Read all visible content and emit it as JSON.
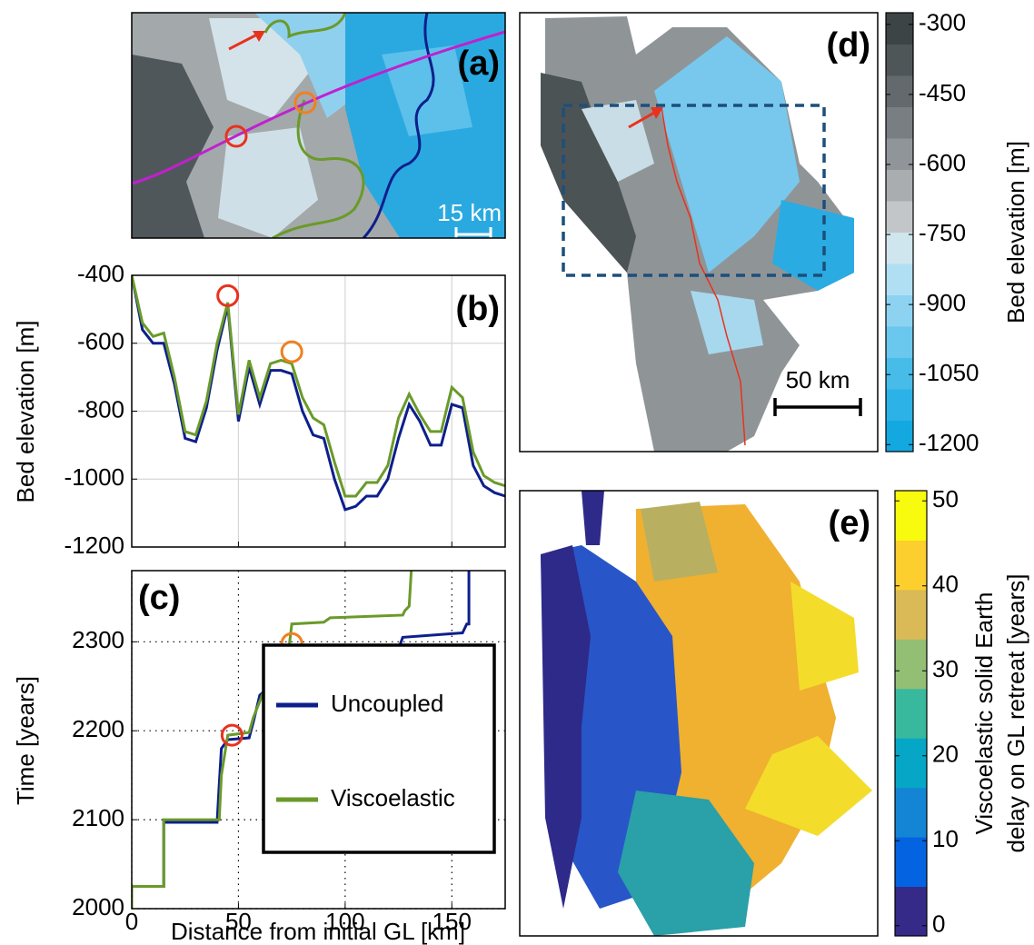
{
  "chart_data": [
    {
      "type": "map",
      "title": "(a)",
      "scale_label": "15 km"
    },
    {
      "type": "line",
      "title": "(b)",
      "ylabel": "Bed elevation [m]",
      "xlim": [
        0,
        175
      ],
      "xticks": [
        0,
        50,
        100,
        150
      ],
      "xtick_labels": false,
      "ylim": [
        -1200,
        -400
      ],
      "yticks": [
        -1200,
        -1000,
        -800,
        -600,
        -400
      ],
      "grid": "solid",
      "series": [
        {
          "color": "#0d1f8c",
          "x": [
            0,
            5,
            10,
            15,
            20,
            25,
            30,
            35,
            40,
            45,
            50,
            55,
            60,
            65,
            70,
            75,
            80,
            85,
            90,
            95,
            100,
            105,
            110,
            115,
            120,
            125,
            130,
            135,
            140,
            145,
            150,
            155,
            160,
            165,
            170,
            175
          ],
          "values": [
            -400,
            -560,
            -600,
            -600,
            -720,
            -880,
            -890,
            -790,
            -620,
            -490,
            -830,
            -670,
            -780,
            -680,
            -680,
            -690,
            -800,
            -870,
            -880,
            -1000,
            -1090,
            -1080,
            -1050,
            -1050,
            -1000,
            -880,
            -780,
            -830,
            -900,
            -900,
            -780,
            -790,
            -960,
            -1020,
            -1040,
            -1050
          ]
        },
        {
          "color": "#6a9a2a",
          "x": [
            0,
            5,
            10,
            15,
            20,
            25,
            30,
            35,
            40,
            45,
            50,
            55,
            60,
            65,
            70,
            75,
            80,
            85,
            90,
            95,
            100,
            105,
            110,
            115,
            120,
            125,
            130,
            135,
            140,
            145,
            150,
            155,
            160,
            165,
            170,
            175
          ],
          "values": [
            -400,
            -540,
            -580,
            -570,
            -700,
            -860,
            -870,
            -770,
            -600,
            -480,
            -810,
            -650,
            -760,
            -660,
            -650,
            -660,
            -760,
            -820,
            -840,
            -950,
            -1050,
            -1050,
            -1010,
            -1010,
            -960,
            -820,
            -750,
            -810,
            -860,
            -860,
            -730,
            -760,
            -920,
            -990,
            -1010,
            -1020
          ]
        }
      ],
      "markers": [
        {
          "x": 45,
          "y": -460,
          "color": "#e8321e"
        },
        {
          "x": 75,
          "y": -625,
          "color": "#f08020"
        }
      ]
    },
    {
      "type": "line",
      "title": "(c)",
      "xlabel": "Distance from initial GL [km]",
      "ylabel": "Time [years]",
      "xlim": [
        0,
        175
      ],
      "xticks": [
        0,
        50,
        100,
        150
      ],
      "ylim": [
        2000,
        2380
      ],
      "yticks": [
        2000,
        2100,
        2200,
        2300
      ],
      "grid": "dotted",
      "legend": "lower right",
      "series": [
        {
          "name": "Uncoupled",
          "color": "#0d1f8c",
          "x": [
            0,
            0,
            15,
            15,
            40,
            41,
            42,
            45,
            55,
            57,
            60,
            65,
            70,
            73,
            75,
            95,
            98,
            125,
            127,
            155,
            157,
            158,
            158
          ],
          "values": [
            2000,
            2025,
            2025,
            2097,
            2097,
            2140,
            2180,
            2190,
            2192,
            2210,
            2240,
            2250,
            2262,
            2265,
            2270,
            2272,
            2290,
            2292,
            2305,
            2310,
            2320,
            2320,
            2380
          ]
        },
        {
          "name": "Viscoelastic",
          "color": "#6a9a2a",
          "x": [
            0,
            0,
            15,
            15,
            41,
            42,
            45,
            55,
            57,
            62,
            70,
            73,
            74,
            75,
            90,
            93,
            127,
            128,
            130,
            131
          ],
          "values": [
            2000,
            2025,
            2025,
            2100,
            2100,
            2150,
            2195,
            2198,
            2215,
            2245,
            2255,
            2260,
            2300,
            2320,
            2322,
            2327,
            2330,
            2335,
            2340,
            2380
          ]
        }
      ],
      "markers": [
        {
          "x": 47,
          "y": 2195,
          "color": "#e8321e"
        },
        {
          "x": 75,
          "y": 2298,
          "color": "#f08020"
        }
      ]
    },
    {
      "type": "map",
      "title": "(d)",
      "scale_label": "50 km",
      "colorbar": {
        "label": "Bed elevation [m]",
        "lim": [
          -1215,
          -275
        ],
        "ticks": [
          -300,
          -450,
          -600,
          -750,
          -900,
          -1050,
          -1200
        ],
        "colors": [
          "#14a8e0",
          "#2cb2e6",
          "#48bce9",
          "#6ac7ed",
          "#8dd3f1",
          "#b0dff4",
          "#d0e6ee",
          "#c3c6c8",
          "#a9adaf",
          "#90959a",
          "#787e81",
          "#63696c",
          "#4f5658",
          "#3c4446"
        ]
      }
    },
    {
      "type": "map",
      "title": "(e)",
      "colorbar": {
        "label": [
          "Viscoelastic solid Earth",
          "delay on GL retreat [years]"
        ],
        "lim": [
          -1.2,
          51.2
        ],
        "ticks": [
          0,
          10,
          20,
          30,
          40,
          50
        ],
        "colors": [
          "#352a87",
          "#0363e1",
          "#1485d4",
          "#06a7c6",
          "#38b99e",
          "#92bf73",
          "#d9ba56",
          "#fcce2e",
          "#f9fb0e"
        ]
      }
    }
  ]
}
